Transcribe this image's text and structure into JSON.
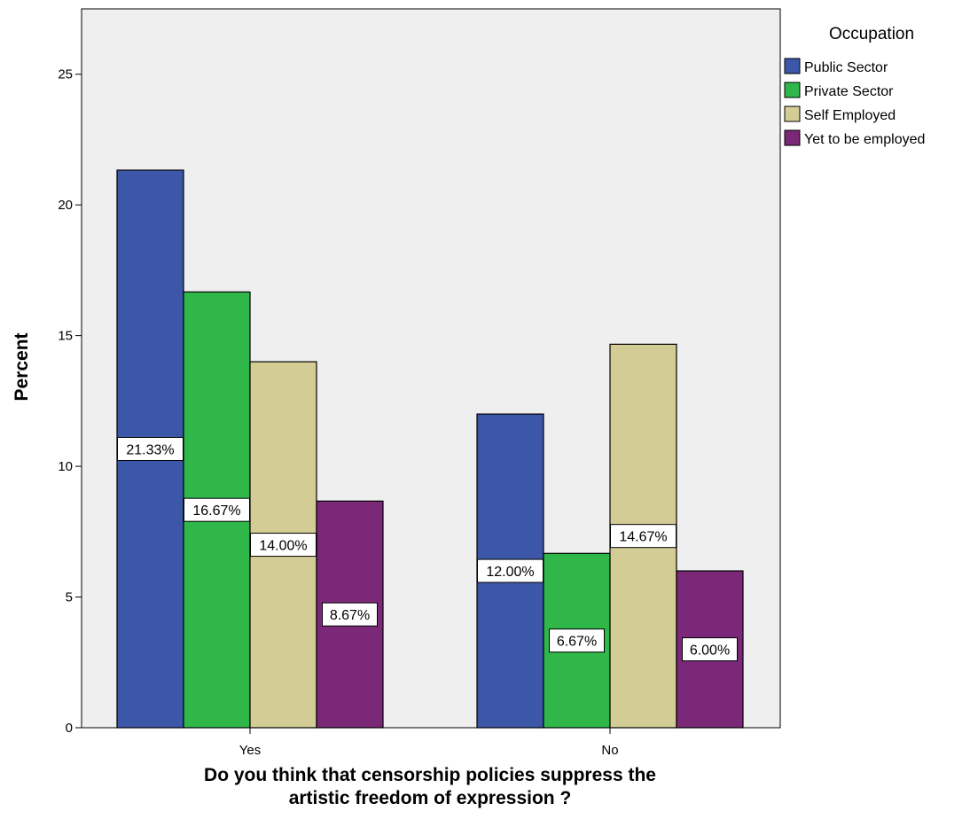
{
  "chart_data": {
    "type": "bar",
    "title": "",
    "xlabel": "Do you think that censorship policies suppress the artistic freedom of expression ?",
    "xlabel_lines": [
      "Do you think that censorship policies suppress the",
      "artistic freedom of expression ?"
    ],
    "ylabel": "Percent",
    "ylim": [
      0,
      27.5
    ],
    "yticks": [
      0,
      5,
      10,
      15,
      20,
      25
    ],
    "grid": false,
    "legend_position": "right",
    "legend_title": "Occupation",
    "categories": [
      "Yes",
      "No"
    ],
    "series": [
      {
        "name": "Public Sector",
        "color": "#3d57a8",
        "values": [
          21.33,
          12.0
        ],
        "labels": [
          "21.33%",
          "12.00%"
        ]
      },
      {
        "name": "Private Sector",
        "color": "#2fb74a",
        "values": [
          16.67,
          6.67
        ],
        "labels": [
          "16.67%",
          "6.67%"
        ]
      },
      {
        "name": "Self Employed",
        "color": "#d3cc95",
        "values": [
          14.0,
          14.67
        ],
        "labels": [
          "14.00%",
          "14.67%"
        ]
      },
      {
        "name": "Yet to be employed",
        "color": "#7b2878",
        "values": [
          8.67,
          6.0
        ],
        "labels": [
          "8.67%",
          "6.00%"
        ]
      }
    ],
    "plot_background": "#efefef"
  }
}
